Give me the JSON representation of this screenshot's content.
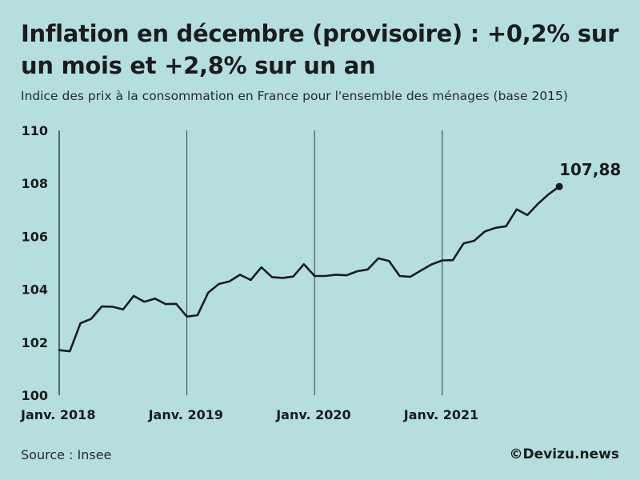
{
  "header": {
    "title": "Inflation en décembre (provisoire) : +0,2% sur un mois et +2,8% sur un an",
    "subtitle": "Indice des prix à la consommation en France pour l'ensemble des ménages (base 2015)"
  },
  "footer": {
    "source": "Source : Insee",
    "credit": "©Devizu.news"
  },
  "chart_data": {
    "type": "line",
    "title": "Inflation en décembre (provisoire) : +0,2% sur un mois et +2,8% sur un an",
    "subtitle": "Indice des prix à la consommation en France pour l'ensemble des ménages (base 2015)",
    "xlabel": "",
    "ylabel": "",
    "ylim": [
      100,
      110
    ],
    "yticks": [
      100,
      102,
      104,
      106,
      108,
      110
    ],
    "ytick_labels": [
      "100",
      "102",
      "104",
      "106",
      "108",
      "110"
    ],
    "xticks": [
      {
        "index": 0,
        "label": "Janv. 2018"
      },
      {
        "index": 12,
        "label": "Janv. 2019"
      },
      {
        "index": 24,
        "label": "Janv. 2020"
      },
      {
        "index": 36,
        "label": "Janv. 2021"
      }
    ],
    "grid": "vertical lines at each January",
    "series": [
      {
        "name": "Indice des prix à la consommation",
        "color": "#1c1c1c",
        "values": [
          101.7,
          101.66,
          102.72,
          102.88,
          103.35,
          103.34,
          103.24,
          103.75,
          103.53,
          103.65,
          103.44,
          103.45,
          102.97,
          103.02,
          103.87,
          104.2,
          104.3,
          104.55,
          104.35,
          104.83,
          104.46,
          104.43,
          104.48,
          104.95,
          104.5,
          104.5,
          104.55,
          104.53,
          104.68,
          104.75,
          105.17,
          105.07,
          104.5,
          104.47,
          104.71,
          104.94,
          105.09,
          105.1,
          105.73,
          105.83,
          106.18,
          106.32,
          106.38,
          107.02,
          106.8,
          107.23,
          107.59,
          107.88
        ]
      }
    ],
    "annotation": {
      "index": 47,
      "value": 107.88,
      "label": "107,88"
    }
  }
}
